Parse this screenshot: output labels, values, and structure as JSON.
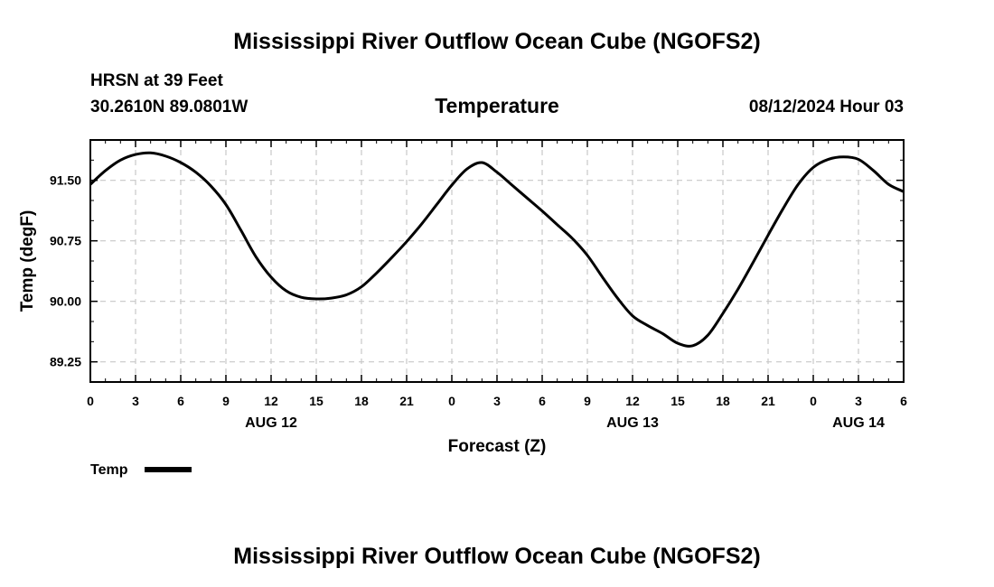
{
  "header": {
    "title": "Mississippi River Outflow Ocean Cube (NGOFS2)",
    "station": "HRSN at 39 Feet",
    "coords": "30.2610N  89.0801W",
    "variable": "Temperature",
    "timestamp": "08/12/2024 Hour 03"
  },
  "footer": {
    "title": "Mississippi River Outflow Ocean Cube (NGOFS2)"
  },
  "colors": {
    "line": "#000000",
    "grid": "#c8c8c8",
    "frame": "#000000"
  },
  "chart_data": {
    "type": "line",
    "title": "Temperature",
    "xlabel": "Forecast (Z)",
    "ylabel": "Temp (degF)",
    "ylim": [
      89.0,
      92.0
    ],
    "yticks": [
      89.25,
      90.0,
      90.75,
      91.5
    ],
    "ytick_labels": [
      "89.25",
      "90.00",
      "90.75",
      "91.50"
    ],
    "xlim": [
      0,
      54
    ],
    "xticks": [
      0,
      3,
      6,
      9,
      12,
      15,
      18,
      21,
      24,
      27,
      30,
      33,
      36,
      39,
      42,
      45,
      48,
      51,
      54
    ],
    "xtick_labels": [
      "0",
      "3",
      "6",
      "9",
      "12",
      "15",
      "18",
      "21",
      "0",
      "3",
      "6",
      "9",
      "12",
      "15",
      "18",
      "21",
      "0",
      "3",
      "6"
    ],
    "date_labels": [
      {
        "x": 12,
        "label": "AUG 12"
      },
      {
        "x": 36,
        "label": "AUG 13"
      },
      {
        "x": 51,
        "label": "AUG 14"
      }
    ],
    "grid": true,
    "legend": {
      "label": "Temp",
      "placement": "bottom-left"
    },
    "series": [
      {
        "name": "Temp",
        "x": [
          0,
          1,
          2,
          3,
          4,
          5,
          6,
          7,
          8,
          9,
          10,
          11,
          12,
          13,
          14,
          15,
          16,
          17,
          18,
          19,
          20,
          21,
          22,
          23,
          24,
          25,
          26,
          27,
          28,
          29,
          30,
          31,
          32,
          33,
          34,
          35,
          36,
          37,
          38,
          39,
          40,
          41,
          42,
          43,
          44,
          45,
          46,
          47,
          48,
          49,
          50,
          51,
          52,
          53,
          54
        ],
        "y": [
          91.45,
          91.62,
          91.75,
          91.82,
          91.84,
          91.8,
          91.72,
          91.6,
          91.43,
          91.2,
          90.88,
          90.55,
          90.3,
          90.13,
          90.05,
          90.03,
          90.04,
          90.08,
          90.18,
          90.35,
          90.54,
          90.74,
          90.96,
          91.2,
          91.44,
          91.64,
          91.72,
          91.6,
          91.44,
          91.28,
          91.12,
          90.95,
          90.78,
          90.57,
          90.3,
          90.04,
          89.82,
          89.7,
          89.6,
          89.48,
          89.45,
          89.58,
          89.85,
          90.15,
          90.48,
          90.82,
          91.15,
          91.45,
          91.66,
          91.76,
          91.79,
          91.76,
          91.62,
          91.45,
          91.36
        ]
      }
    ]
  }
}
